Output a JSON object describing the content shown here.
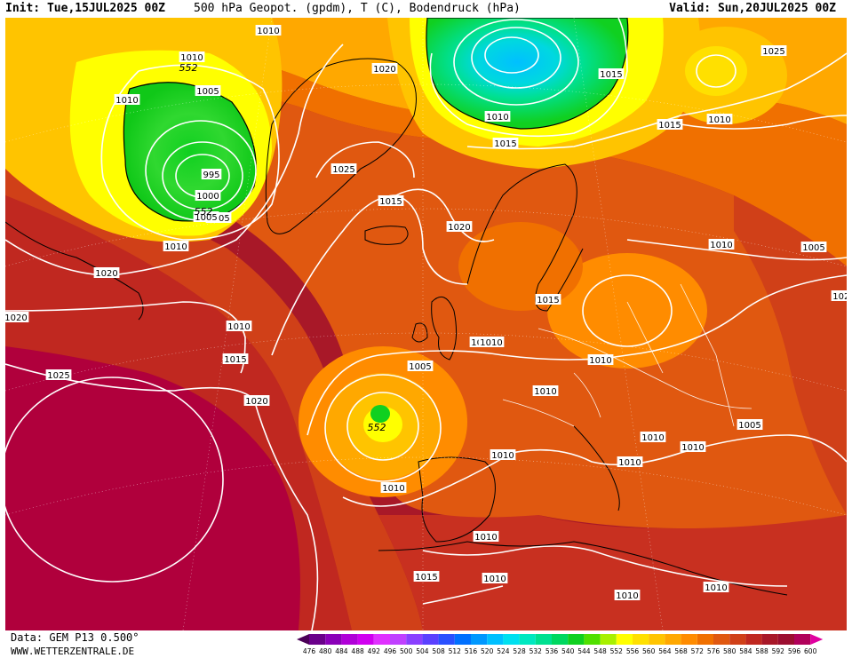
{
  "header": {
    "init": "Init: Tue,15JUL2025 00Z",
    "title": "500 hPa Geopot. (gpdm), T (C), Bodendruck (hPa)",
    "valid": "Valid: Sun,20JUL2025 00Z"
  },
  "footer": {
    "model": "Data: GEM P13 0.500°",
    "site": "WWW.WETTERZENTRALE.DE"
  },
  "legend": {
    "values": [
      "476",
      "480",
      "484",
      "488",
      "492",
      "496",
      "500",
      "504",
      "508",
      "512",
      "516",
      "520",
      "524",
      "528",
      "532",
      "536",
      "540",
      "544",
      "548",
      "552",
      "556",
      "560",
      "564",
      "568",
      "572",
      "576",
      "580",
      "584",
      "588",
      "592",
      "596",
      "600"
    ],
    "colors": [
      "#4b0057",
      "#6a008a",
      "#8a00b8",
      "#b000d8",
      "#d000f0",
      "#e030ff",
      "#c040ff",
      "#8a40ff",
      "#5a40ff",
      "#2a50ff",
      "#0070ff",
      "#0098ff",
      "#00c0ff",
      "#00e0f0",
      "#00e8c0",
      "#00e090",
      "#00d860",
      "#10d020",
      "#50e000",
      "#a8f000",
      "#ffff00",
      "#ffe000",
      "#ffc400",
      "#ffa800",
      "#ff8c00",
      "#f07000",
      "#e05810",
      "#d04018",
      "#c02820",
      "#a81828",
      "#9c0e30",
      "#b0005a",
      "#e000a0"
    ],
    "colors_note": "ordered low to high"
  },
  "map": {
    "isobar_labels": [
      {
        "text": "1010"
      },
      {
        "text": "1010"
      },
      {
        "text": "1010"
      },
      {
        "text": "1005"
      },
      {
        "text": "995"
      },
      {
        "text": "1000"
      },
      {
        "text": "1005"
      },
      {
        "text": "1010"
      },
      {
        "text": "1020"
      },
      {
        "text": "1020"
      },
      {
        "text": "1025"
      },
      {
        "text": "1020"
      },
      {
        "text": "1015"
      },
      {
        "text": "1020"
      },
      {
        "text": "1010"
      },
      {
        "text": "1015"
      },
      {
        "text": "1020"
      },
      {
        "text": "1025"
      },
      {
        "text": "1025"
      },
      {
        "text": "1005"
      },
      {
        "text": "1010"
      },
      {
        "text": "1015"
      },
      {
        "text": "1015"
      },
      {
        "text": "1005"
      },
      {
        "text": "1010"
      },
      {
        "text": "1015"
      },
      {
        "text": "1010"
      },
      {
        "text": "1010"
      },
      {
        "text": "1005"
      },
      {
        "text": "1015"
      },
      {
        "text": "1010"
      },
      {
        "text": "1010"
      },
      {
        "text": "1005"
      },
      {
        "text": "1010"
      },
      {
        "text": "1010"
      },
      {
        "text": "1010"
      },
      {
        "text": "1010"
      },
      {
        "text": "1010"
      },
      {
        "text": "1010"
      },
      {
        "text": "1010"
      },
      {
        "text": "1010"
      },
      {
        "text": "1015"
      },
      {
        "text": "1010"
      },
      {
        "text": "1010"
      },
      {
        "text": "1020"
      }
    ],
    "geopot_labels": [
      "552",
      "552",
      "552"
    ]
  }
}
